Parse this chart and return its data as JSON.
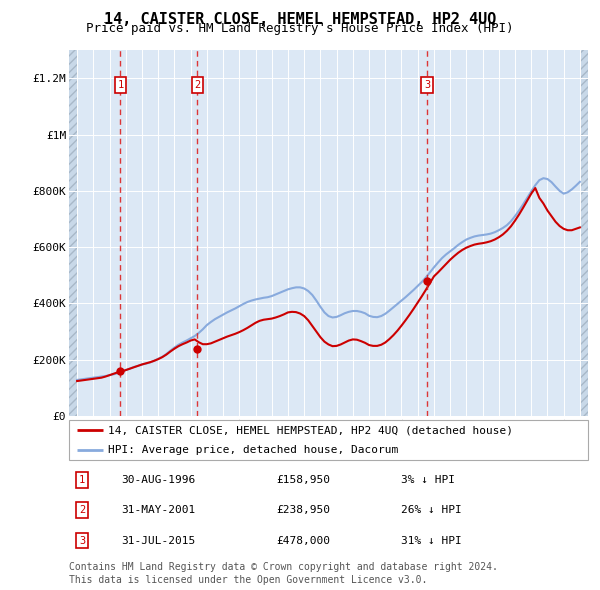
{
  "title": "14, CAISTER CLOSE, HEMEL HEMPSTEAD, HP2 4UQ",
  "subtitle": "Price paid vs. HM Land Registry's House Price Index (HPI)",
  "ylim": [
    0,
    1300000
  ],
  "yticks": [
    0,
    200000,
    400000,
    600000,
    800000,
    1000000,
    1200000
  ],
  "ytick_labels": [
    "£0",
    "£200K",
    "£400K",
    "£600K",
    "£800K",
    "£1M",
    "£1.2M"
  ],
  "xlim": [
    1993.5,
    2025.5
  ],
  "background_color": "#ffffff",
  "plot_bg_color": "#dce8f5",
  "grid_color": "#ffffff",
  "legend_label_red": "14, CAISTER CLOSE, HEMEL HEMPSTEAD, HP2 4UQ (detached house)",
  "legend_label_blue": "HPI: Average price, detached house, Dacorum",
  "footer": "Contains HM Land Registry data © Crown copyright and database right 2024.\nThis data is licensed under the Open Government Licence v3.0.",
  "purchases": [
    {
      "num": 1,
      "date": "30-AUG-1996",
      "price": 158950,
      "pct": "3%",
      "dir": "↓",
      "year": 1996.67
    },
    {
      "num": 2,
      "date": "31-MAY-2001",
      "price": 238950,
      "pct": "26%",
      "dir": "↓",
      "year": 2001.42
    },
    {
      "num": 3,
      "date": "31-JUL-2015",
      "price": 478000,
      "pct": "31%",
      "dir": "↓",
      "year": 2015.58
    }
  ],
  "hpi_years": [
    1994,
    1994.25,
    1994.5,
    1994.75,
    1995,
    1995.25,
    1995.5,
    1995.75,
    1996,
    1996.25,
    1996.5,
    1996.75,
    1997,
    1997.25,
    1997.5,
    1997.75,
    1998,
    1998.25,
    1998.5,
    1998.75,
    1999,
    1999.25,
    1999.5,
    1999.75,
    2000,
    2000.25,
    2000.5,
    2000.75,
    2001,
    2001.25,
    2001.5,
    2001.75,
    2002,
    2002.25,
    2002.5,
    2002.75,
    2003,
    2003.25,
    2003.5,
    2003.75,
    2004,
    2004.25,
    2004.5,
    2004.75,
    2005,
    2005.25,
    2005.5,
    2005.75,
    2006,
    2006.25,
    2006.5,
    2006.75,
    2007,
    2007.25,
    2007.5,
    2007.75,
    2008,
    2008.25,
    2008.5,
    2008.75,
    2009,
    2009.25,
    2009.5,
    2009.75,
    2010,
    2010.25,
    2010.5,
    2010.75,
    2011,
    2011.25,
    2011.5,
    2011.75,
    2012,
    2012.25,
    2012.5,
    2012.75,
    2013,
    2013.25,
    2013.5,
    2013.75,
    2014,
    2014.25,
    2014.5,
    2014.75,
    2015,
    2015.25,
    2015.5,
    2015.75,
    2016,
    2016.25,
    2016.5,
    2016.75,
    2017,
    2017.25,
    2017.5,
    2017.75,
    2018,
    2018.25,
    2018.5,
    2018.75,
    2019,
    2019.25,
    2019.5,
    2019.75,
    2020,
    2020.25,
    2020.5,
    2020.75,
    2021,
    2021.25,
    2021.5,
    2021.75,
    2022,
    2022.25,
    2022.5,
    2022.75,
    2023,
    2023.25,
    2023.5,
    2023.75,
    2024,
    2024.25,
    2024.5,
    2024.75,
    2025
  ],
  "hpi_values": [
    128000,
    130000,
    132000,
    134000,
    136000,
    138000,
    140000,
    142000,
    145000,
    148000,
    152000,
    157000,
    163000,
    168000,
    174000,
    178000,
    183000,
    186000,
    190000,
    196000,
    203000,
    210000,
    220000,
    232000,
    243000,
    253000,
    261000,
    268000,
    276000,
    284000,
    295000,
    308000,
    323000,
    334000,
    344000,
    352000,
    360000,
    368000,
    375000,
    382000,
    390000,
    398000,
    405000,
    410000,
    414000,
    417000,
    420000,
    422000,
    426000,
    432000,
    438000,
    444000,
    450000,
    454000,
    457000,
    457000,
    453000,
    444000,
    430000,
    410000,
    388000,
    368000,
    355000,
    350000,
    352000,
    358000,
    365000,
    370000,
    373000,
    373000,
    370000,
    365000,
    356000,
    352000,
    351000,
    355000,
    363000,
    374000,
    386000,
    398000,
    410000,
    422000,
    435000,
    448000,
    462000,
    476000,
    492000,
    510000,
    528000,
    545000,
    561000,
    574000,
    585000,
    596000,
    608000,
    618000,
    627000,
    633000,
    638000,
    641000,
    643000,
    645000,
    648000,
    653000,
    660000,
    668000,
    678000,
    692000,
    710000,
    730000,
    752000,
    775000,
    798000,
    820000,
    838000,
    845000,
    842000,
    831000,
    815000,
    800000,
    790000,
    795000,
    805000,
    818000,
    832000
  ],
  "price_years": [
    1994,
    1994.25,
    1994.5,
    1994.75,
    1995,
    1995.25,
    1995.5,
    1995.75,
    1996,
    1996.25,
    1996.5,
    1996.75,
    1997,
    1997.25,
    1997.5,
    1997.75,
    1998,
    1998.25,
    1998.5,
    1998.75,
    1999,
    1999.25,
    1999.5,
    1999.75,
    2000,
    2000.25,
    2000.5,
    2000.75,
    2001,
    2001.25,
    2001.5,
    2001.75,
    2002,
    2002.25,
    2002.5,
    2002.75,
    2003,
    2003.25,
    2003.5,
    2003.75,
    2004,
    2004.25,
    2004.5,
    2004.75,
    2005,
    2005.25,
    2005.5,
    2005.75,
    2006,
    2006.25,
    2006.5,
    2006.75,
    2007,
    2007.25,
    2007.5,
    2007.75,
    2008,
    2008.25,
    2008.5,
    2008.75,
    2009,
    2009.25,
    2009.5,
    2009.75,
    2010,
    2010.25,
    2010.5,
    2010.75,
    2011,
    2011.25,
    2011.5,
    2011.75,
    2012,
    2012.25,
    2012.5,
    2012.75,
    2013,
    2013.25,
    2013.5,
    2013.75,
    2014,
    2014.25,
    2014.5,
    2014.75,
    2015,
    2015.25,
    2015.5,
    2015.75,
    2016,
    2016.25,
    2016.5,
    2016.75,
    2017,
    2017.25,
    2017.5,
    2017.75,
    2018,
    2018.25,
    2018.5,
    2018.75,
    2019,
    2019.25,
    2019.5,
    2019.75,
    2020,
    2020.25,
    2020.5,
    2020.75,
    2021,
    2021.25,
    2021.5,
    2021.75,
    2022,
    2022.25,
    2022.5,
    2022.75,
    2023,
    2023.25,
    2023.5,
    2023.75,
    2024,
    2024.25,
    2024.5,
    2024.75,
    2025
  ],
  "price_values": [
    124000,
    126000,
    128000,
    130000,
    132000,
    134000,
    136000,
    140000,
    145000,
    150000,
    155000,
    158000,
    163000,
    168000,
    173000,
    178000,
    183000,
    187000,
    191000,
    196000,
    202000,
    209000,
    218000,
    229000,
    239000,
    248000,
    255000,
    261000,
    268000,
    272000,
    262000,
    255000,
    255000,
    258000,
    264000,
    270000,
    276000,
    282000,
    287000,
    292000,
    298000,
    305000,
    313000,
    322000,
    331000,
    338000,
    342000,
    344000,
    346000,
    350000,
    355000,
    361000,
    368000,
    370000,
    369000,
    364000,
    355000,
    340000,
    320000,
    300000,
    280000,
    264000,
    254000,
    248000,
    249000,
    254000,
    261000,
    268000,
    272000,
    271000,
    266000,
    260000,
    252000,
    249000,
    249000,
    253000,
    261000,
    273000,
    287000,
    303000,
    321000,
    340000,
    360000,
    381000,
    403000,
    425000,
    448000,
    472000,
    496000,
    510000,
    525000,
    540000,
    555000,
    568000,
    580000,
    590000,
    598000,
    604000,
    609000,
    612000,
    614000,
    617000,
    621000,
    627000,
    635000,
    645000,
    658000,
    674000,
    694000,
    716000,
    740000,
    765000,
    790000,
    810000,
    775000,
    755000,
    730000,
    710000,
    690000,
    675000,
    665000,
    660000,
    660000,
    665000,
    670000
  ],
  "red_color": "#cc0000",
  "blue_color": "#88aadd",
  "title_fontsize": 11,
  "subtitle_fontsize": 9,
  "axis_fontsize": 8,
  "legend_fontsize": 8,
  "table_fontsize": 8,
  "footer_fontsize": 7
}
